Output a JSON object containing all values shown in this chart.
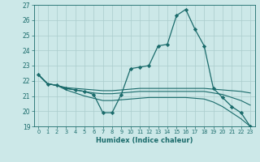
{
  "xlabel": "Humidex (Indice chaleur)",
  "ylabel": "",
  "xlim": [
    -0.5,
    23.5
  ],
  "ylim": [
    19,
    27
  ],
  "yticks": [
    19,
    20,
    21,
    22,
    23,
    24,
    25,
    26,
    27
  ],
  "xticks": [
    0,
    1,
    2,
    3,
    4,
    5,
    6,
    7,
    8,
    9,
    10,
    11,
    12,
    13,
    14,
    15,
    16,
    17,
    18,
    19,
    20,
    21,
    22,
    23
  ],
  "background_color": "#cce8e8",
  "line_color": "#1a6b6b",
  "grid_color": "#aacccc",
  "lines": [
    {
      "x": [
        0,
        1,
        2,
        3,
        4,
        5,
        6,
        7,
        8,
        9,
        10,
        11,
        12,
        13,
        14,
        15,
        16,
        17,
        18,
        19,
        20,
        21,
        22,
        23
      ],
      "y": [
        22.4,
        21.8,
        21.7,
        21.5,
        21.4,
        21.3,
        21.1,
        19.9,
        19.9,
        21.1,
        22.8,
        22.9,
        23.0,
        24.3,
        24.4,
        26.3,
        26.7,
        25.4,
        24.3,
        21.5,
        20.9,
        20.3,
        19.9,
        19.0
      ],
      "has_markers": true
    },
    {
      "x": [
        0,
        1,
        2,
        3,
        4,
        5,
        6,
        7,
        8,
        9,
        10,
        11,
        12,
        13,
        14,
        15,
        16,
        17,
        18,
        19,
        20,
        21,
        22,
        23
      ],
      "y": [
        22.4,
        21.8,
        21.7,
        21.55,
        21.5,
        21.45,
        21.4,
        21.35,
        21.35,
        21.4,
        21.45,
        21.5,
        21.5,
        21.5,
        21.5,
        21.5,
        21.5,
        21.5,
        21.5,
        21.45,
        21.4,
        21.35,
        21.3,
        21.2
      ],
      "has_markers": false
    },
    {
      "x": [
        0,
        1,
        2,
        3,
        4,
        5,
        6,
        7,
        8,
        9,
        10,
        11,
        12,
        13,
        14,
        15,
        16,
        17,
        18,
        19,
        20,
        21,
        22,
        23
      ],
      "y": [
        22.4,
        21.8,
        21.7,
        21.5,
        21.4,
        21.3,
        21.2,
        21.15,
        21.15,
        21.2,
        21.25,
        21.3,
        21.3,
        21.3,
        21.3,
        21.3,
        21.3,
        21.3,
        21.3,
        21.2,
        21.1,
        20.9,
        20.7,
        20.4
      ],
      "has_markers": false
    },
    {
      "x": [
        0,
        1,
        2,
        3,
        4,
        5,
        6,
        7,
        8,
        9,
        10,
        11,
        12,
        13,
        14,
        15,
        16,
        17,
        18,
        19,
        20,
        21,
        22,
        23
      ],
      "y": [
        22.4,
        21.8,
        21.7,
        21.4,
        21.2,
        21.0,
        20.85,
        20.7,
        20.7,
        20.75,
        20.8,
        20.85,
        20.9,
        20.9,
        20.9,
        20.9,
        20.9,
        20.85,
        20.8,
        20.6,
        20.3,
        19.9,
        19.5,
        19.0
      ],
      "has_markers": false
    }
  ]
}
